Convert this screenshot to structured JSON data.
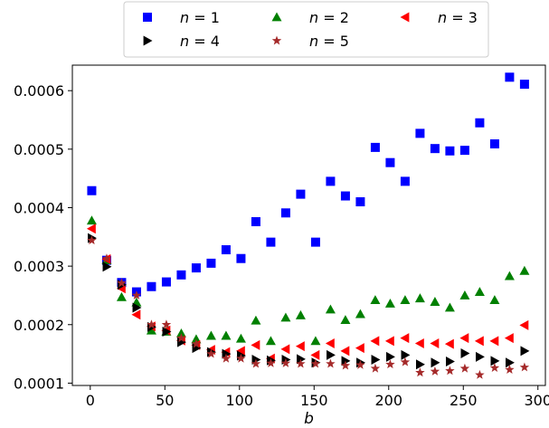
{
  "chart_data": {
    "type": "scatter",
    "xlabel": "b",
    "ylabel": "",
    "xlim": [
      -12,
      305
    ],
    "ylim": [
      9.6e-05,
      0.0006436
    ],
    "x_ticks": [
      0,
      50,
      100,
      150,
      200,
      250,
      300
    ],
    "y_ticks": [
      0.0001,
      0.0002,
      0.0003,
      0.0004,
      0.0005,
      0.0006
    ],
    "x_tick_labels": [
      "0",
      "50",
      "100",
      "150",
      "200",
      "250",
      "300"
    ],
    "y_tick_labels": [
      "0.0001",
      "0.0002",
      "0.0003",
      "0.0004",
      "0.0005",
      "0.0006"
    ],
    "grid": false,
    "legend": {
      "placement": "top-center",
      "columns": 3
    },
    "x": [
      1,
      11,
      21,
      31,
      41,
      51,
      61,
      71,
      81,
      91,
      101,
      111,
      121,
      131,
      141,
      151,
      161,
      171,
      181,
      191,
      201,
      211,
      221,
      231,
      241,
      251,
      261,
      271,
      281,
      291
    ],
    "series": [
      {
        "name": "n = 1",
        "name_var": "n",
        "name_val": "1",
        "marker": "square",
        "color": "#0000ff",
        "values": [
          0.000429,
          0.00031,
          0.000272,
          0.000256,
          0.000265,
          0.000273,
          0.000285,
          0.000297,
          0.000305,
          0.000328,
          0.000313,
          0.000376,
          0.000341,
          0.000391,
          0.000423,
          0.000341,
          0.000445,
          0.00042,
          0.00041,
          0.000503,
          0.000477,
          0.000445,
          0.000527,
          0.000501,
          0.000497,
          0.000498,
          0.000545,
          0.000509,
          0.000623,
          0.000611
        ]
      },
      {
        "name": "n = 2",
        "name_var": "n",
        "name_val": "2",
        "marker": "triangle-up",
        "color": "#008000",
        "values": [
          0.000378,
          0.00031,
          0.000247,
          0.000238,
          0.00019,
          0.000188,
          0.000185,
          0.000175,
          0.000181,
          0.000181,
          0.000176,
          0.000207,
          0.000172,
          0.000212,
          0.000216,
          0.000172,
          0.000226,
          0.000208,
          0.000218,
          0.000242,
          0.000236,
          0.000242,
          0.000245,
          0.000239,
          0.000229,
          0.00025,
          0.000256,
          0.000242,
          0.000283,
          0.000292
        ]
      },
      {
        "name": "n = 3",
        "name_var": "n",
        "name_val": "3",
        "marker": "triangle-left",
        "color": "#ff0000",
        "values": [
          0.000364,
          0.000312,
          0.000262,
          0.000217,
          0.000197,
          0.00019,
          0.000173,
          0.000165,
          0.000157,
          0.000153,
          0.000155,
          0.000165,
          0.000142,
          0.000158,
          0.000163,
          0.000148,
          0.000168,
          0.000155,
          0.00016,
          0.000172,
          0.000172,
          0.000177,
          0.000168,
          0.000168,
          0.000167,
          0.000177,
          0.000172,
          0.000172,
          0.000177,
          0.000199
        ]
      },
      {
        "name": "n = 4",
        "name_var": "n",
        "name_val": "4",
        "marker": "triangle-right",
        "color": "#000000",
        "values": [
          0.000348,
          0.000299,
          0.000268,
          0.000229,
          0.000196,
          0.000188,
          0.00017,
          0.00016,
          0.000153,
          0.00015,
          0.000147,
          0.00014,
          0.000139,
          0.00014,
          0.000141,
          0.000135,
          0.000148,
          0.000138,
          0.000135,
          0.00014,
          0.000145,
          0.000148,
          0.000132,
          0.000135,
          0.000137,
          0.000151,
          0.000145,
          0.000138,
          0.000135,
          0.000155
        ]
      },
      {
        "name": "n = 5",
        "name_var": "n",
        "name_val": "5",
        "marker": "star",
        "color": "#a52a2a",
        "values": [
          0.000344,
          0.000313,
          0.000271,
          0.00025,
          0.0002,
          0.0002,
          0.000177,
          0.000167,
          0.00015,
          0.000142,
          0.000142,
          0.000133,
          0.000134,
          0.000134,
          0.000133,
          0.000133,
          0.000133,
          0.00013,
          0.000131,
          0.000125,
          0.000132,
          0.000136,
          0.000118,
          0.00012,
          0.000121,
          0.000125,
          0.000114,
          0.000126,
          0.000123,
          0.000127
        ]
      }
    ]
  }
}
